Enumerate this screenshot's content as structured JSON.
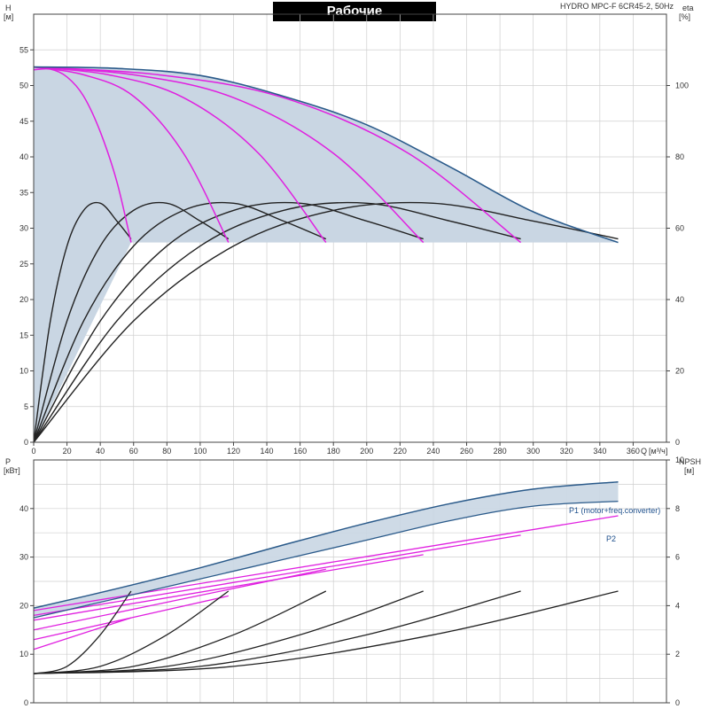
{
  "chart_data": [
    {
      "type": "line",
      "title": "Рабочие характеристики",
      "model": "HYDRO MPC-F 6CR45-2, 50Hz",
      "ylabel": "H",
      "yunit": "[м]",
      "y2label": "eta",
      "y2unit": "[%]",
      "xlabel": "Q",
      "xunit": "[м³/ч]",
      "xlim": [
        0,
        380
      ],
      "ylim": [
        0,
        60
      ],
      "y2lim": [
        0,
        120
      ],
      "grid": true,
      "xticks": [
        "0",
        "20",
        "40",
        "60",
        "80",
        "100",
        "120",
        "140",
        "160",
        "180",
        "200",
        "220",
        "240",
        "260",
        "280",
        "300",
        "320",
        "340",
        "360"
      ],
      "yticks": [
        "0",
        "5",
        "10",
        "15",
        "20",
        "25",
        "30",
        "35",
        "40",
        "45",
        "50",
        "55"
      ],
      "y2ticks": [
        "0",
        "20",
        "40",
        "60",
        "80",
        "100"
      ],
      "colors": {
        "envelope": "#2a5a8a",
        "fill": "#c9d6e3",
        "pump": "#e020e0",
        "eta": "#222222"
      },
      "max_head_curve": {
        "x": [
          0,
          50,
          100,
          150,
          200,
          250,
          300,
          351
        ],
        "y": [
          52.6,
          52.4,
          51.4,
          48.5,
          44.5,
          38.6,
          32.3,
          28.0
        ]
      },
      "pump_count_curves": [
        {
          "pumps": 1,
          "x": [
            0,
            10,
            20,
            30,
            40,
            50,
            58.5
          ],
          "y": [
            52.2,
            52.3,
            51.2,
            48.5,
            43.5,
            36.5,
            28.0
          ]
        },
        {
          "pumps": 2,
          "x": [
            0,
            30,
            60,
            90,
            117
          ],
          "y": [
            52.6,
            51.5,
            48.5,
            40.5,
            28.0
          ]
        },
        {
          "pumps": 3,
          "x": [
            0,
            45,
            90,
            135,
            175.5
          ],
          "y": [
            52.6,
            51.5,
            48.3,
            40.5,
            28.0
          ]
        },
        {
          "pumps": 4,
          "x": [
            0,
            60,
            120,
            180,
            234
          ],
          "y": [
            52.6,
            51.5,
            48.3,
            40.5,
            28.0
          ]
        },
        {
          "pumps": 5,
          "x": [
            0,
            75,
            150,
            225,
            292.5
          ],
          "y": [
            52.6,
            51.5,
            48.3,
            40.5,
            28.0
          ]
        }
      ],
      "min_head": 28.0,
      "efficiency_curves": [
        {
          "x": [
            0,
            10,
            20,
            30,
            40,
            50,
            58.5
          ],
          "y": [
            0,
            34,
            55,
            65,
            67,
            62,
            57
          ]
        },
        {
          "x": [
            0,
            20,
            40,
            60,
            80,
            100,
            117
          ],
          "y": [
            0,
            34,
            55,
            65,
            67,
            62,
            57
          ]
        },
        {
          "x": [
            0,
            30,
            60,
            90,
            120,
            150,
            175.5
          ],
          "y": [
            0,
            34,
            55,
            65,
            67,
            62,
            57
          ]
        },
        {
          "x": [
            0,
            40,
            80,
            120,
            160,
            200,
            234
          ],
          "y": [
            0,
            34,
            55,
            65,
            67,
            62,
            57
          ]
        },
        {
          "x": [
            0,
            50,
            100,
            150,
            200,
            250,
            292.5
          ],
          "y": [
            0,
            34,
            55,
            65,
            67,
            62,
            57
          ]
        },
        {
          "x": [
            0,
            60,
            120,
            180,
            240,
            300,
            351
          ],
          "y": [
            0,
            34,
            55,
            65,
            67,
            62,
            57
          ]
        }
      ]
    },
    {
      "type": "line",
      "ylabel": "P",
      "yunit": "[кВт]",
      "y2label": "NPSH",
      "y2unit": "[м]",
      "xlim": [
        0,
        380
      ],
      "ylim": [
        0,
        50
      ],
      "y2lim": [
        0,
        10
      ],
      "grid": true,
      "yticks": [
        "0",
        "10",
        "20",
        "30",
        "40"
      ],
      "y2ticks": [
        "0",
        "2",
        "4",
        "6",
        "8",
        "10"
      ],
      "series": [
        {
          "name": "P1 (motor+freq.converter)",
          "x": [
            0,
            50,
            100,
            150,
            200,
            250,
            300,
            351
          ],
          "y": [
            19.5,
            23.5,
            27.8,
            32.5,
            37.0,
            41.0,
            44.0,
            45.5
          ]
        },
        {
          "name": "P2",
          "x": [
            0,
            50,
            100,
            150,
            200,
            250,
            300,
            351
          ],
          "y": [
            17.5,
            21.5,
            25.5,
            29.5,
            33.5,
            37.5,
            40.5,
            41.5
          ]
        }
      ],
      "pump_power_curves": [
        {
          "x": [
            0,
            58.5
          ],
          "y": [
            11.0,
            17.5
          ]
        },
        {
          "x": [
            0,
            117
          ],
          "y": [
            13.0,
            22.0
          ]
        },
        {
          "x": [
            0,
            175.5
          ],
          "y": [
            15.0,
            27.5
          ]
        },
        {
          "x": [
            0,
            234
          ],
          "y": [
            17.0,
            30.5
          ]
        },
        {
          "x": [
            0,
            292.5
          ],
          "y": [
            18.0,
            34.5
          ]
        },
        {
          "x": [
            0,
            351
          ],
          "y": [
            19.0,
            38.5
          ]
        }
      ],
      "npsh_curves": [
        {
          "x": [
            0,
            20,
            40,
            58.5
          ],
          "y": [
            1.2,
            1.5,
            2.8,
            4.6
          ]
        },
        {
          "x": [
            0,
            40,
            80,
            117
          ],
          "y": [
            1.2,
            1.5,
            2.8,
            4.6
          ]
        },
        {
          "x": [
            0,
            60,
            120,
            175.5
          ],
          "y": [
            1.2,
            1.5,
            2.8,
            4.6
          ]
        },
        {
          "x": [
            0,
            80,
            160,
            234
          ],
          "y": [
            1.2,
            1.5,
            2.8,
            4.6
          ]
        },
        {
          "x": [
            0,
            100,
            200,
            292.5
          ],
          "y": [
            1.2,
            1.5,
            2.8,
            4.6
          ]
        },
        {
          "x": [
            0,
            120,
            240,
            351
          ],
          "y": [
            1.2,
            1.5,
            2.8,
            4.6
          ]
        }
      ]
    }
  ]
}
